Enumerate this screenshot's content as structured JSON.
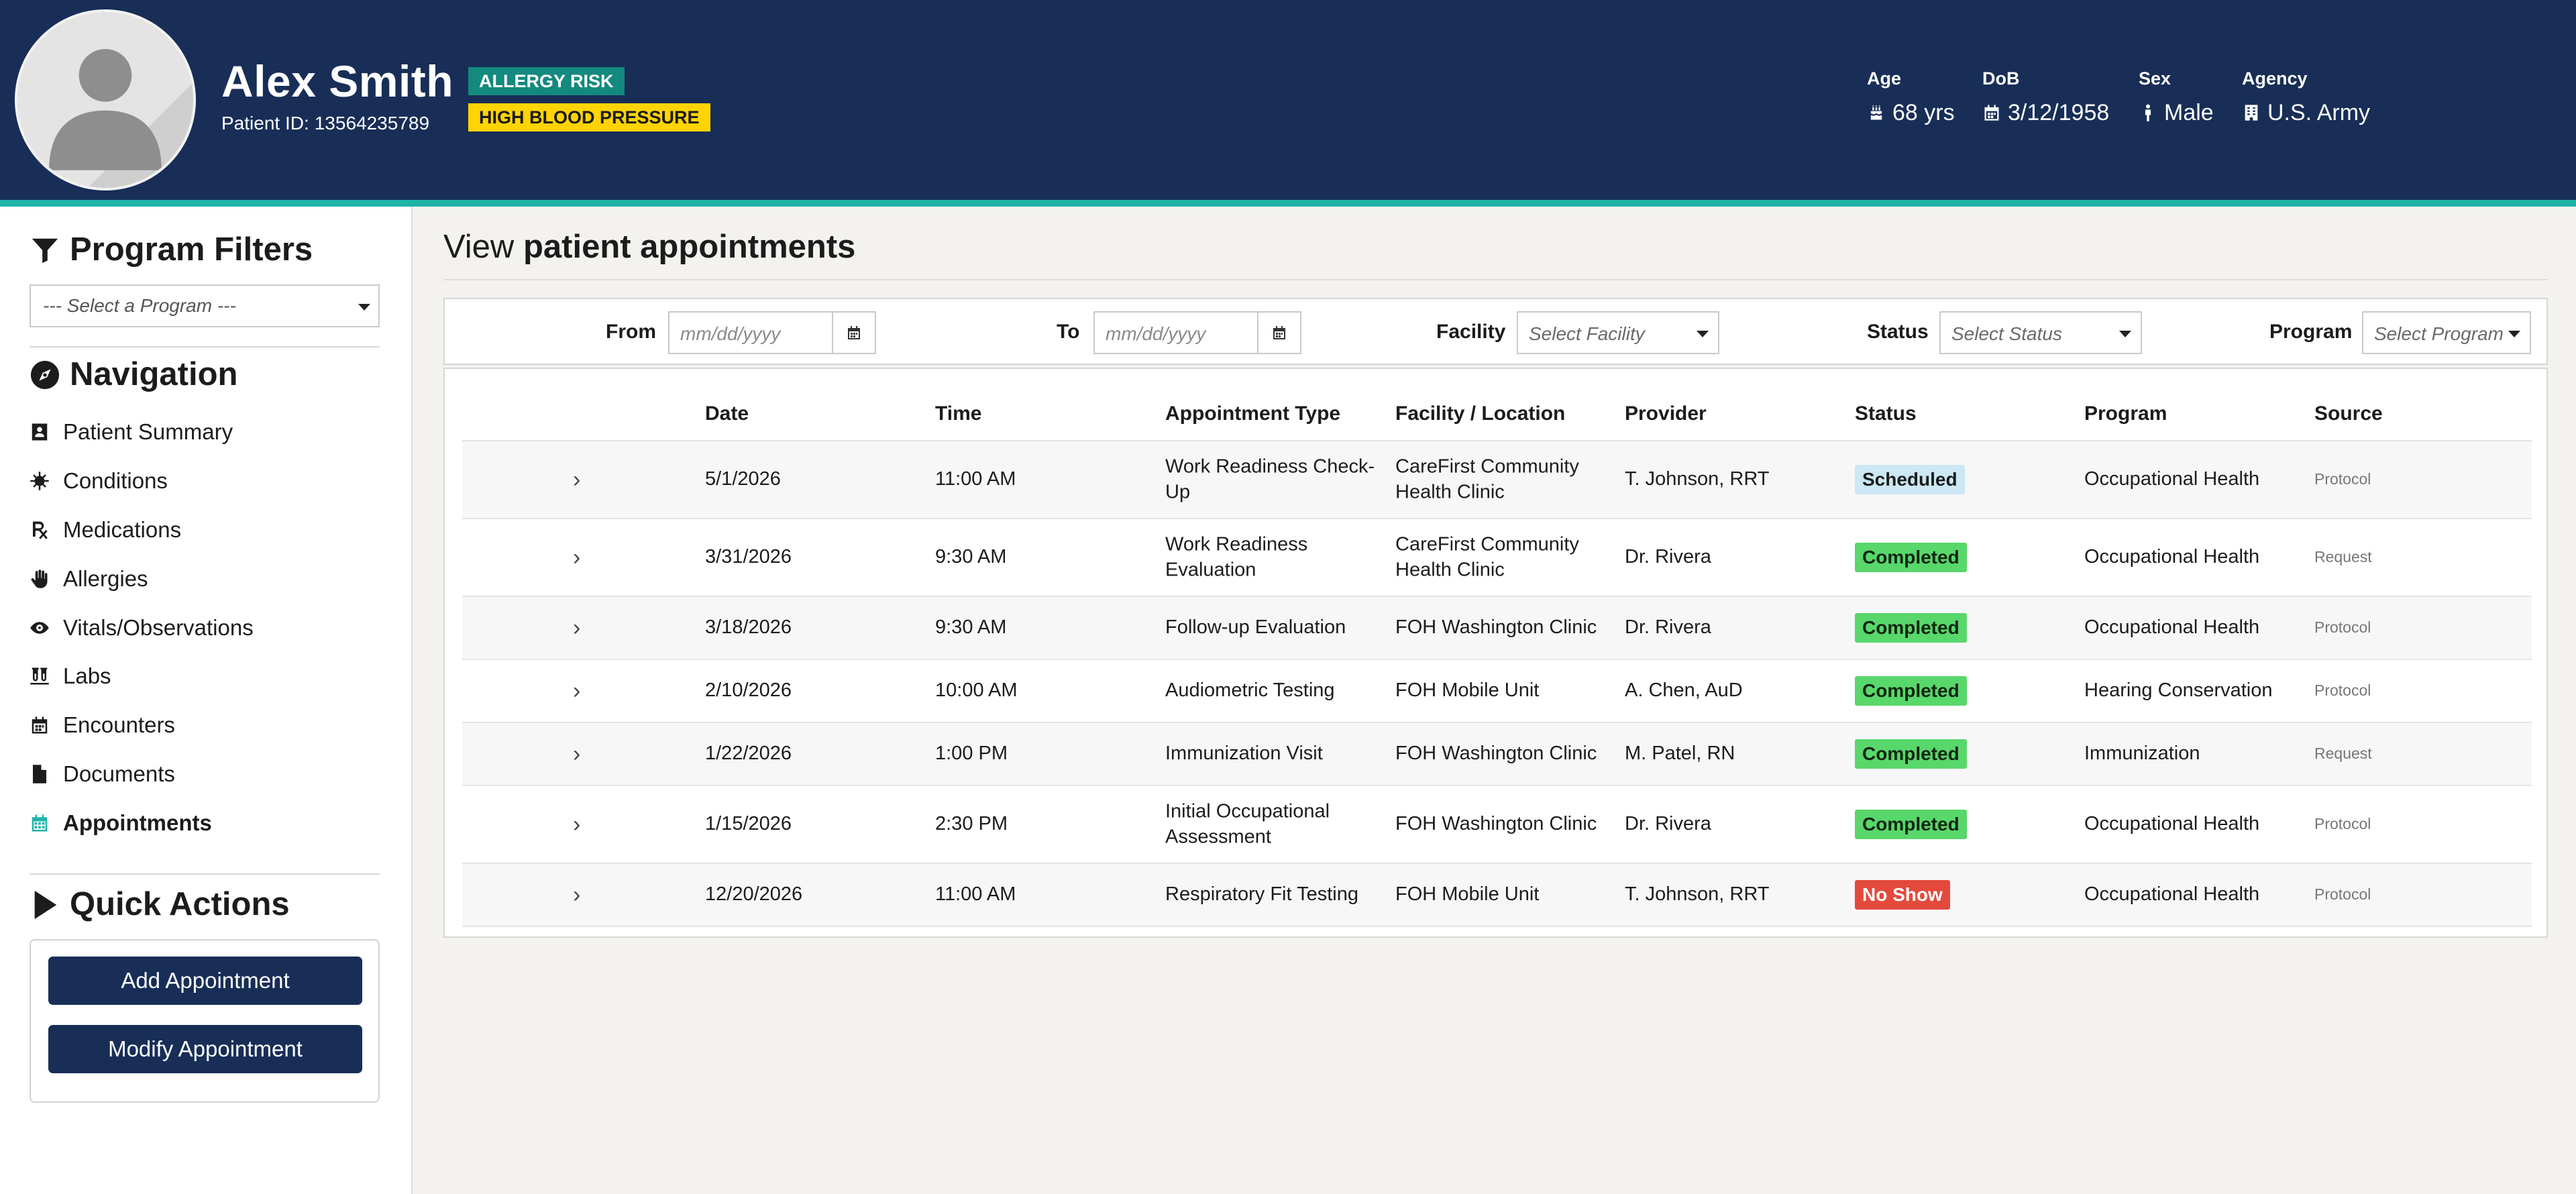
{
  "patient": {
    "name": "Alex Smith",
    "id_label": "Patient ID:",
    "id": "13564235789",
    "alerts": [
      "ALLERGY RISK",
      "HIGH BLOOD PRESSURE"
    ],
    "demographics": {
      "age": {
        "label": "Age",
        "value": "68 yrs"
      },
      "dob": {
        "label": "DoB",
        "value": "3/12/1958"
      },
      "sex": {
        "label": "Sex",
        "value": "Male"
      },
      "agency": {
        "label": "Agency",
        "value": "U.S. Army"
      }
    }
  },
  "sidebar": {
    "filters_title": "Program Filters",
    "program_select": "--- Select a Program ---",
    "nav_title": "Navigation",
    "nav_items": [
      {
        "label": "Patient Summary",
        "icon": "id-card-icon"
      },
      {
        "label": "Conditions",
        "icon": "virus-icon"
      },
      {
        "label": "Medications",
        "icon": "prescription-icon"
      },
      {
        "label": "Allergies",
        "icon": "hand-icon"
      },
      {
        "label": "Vitals/Observations",
        "icon": "eye-icon"
      },
      {
        "label": "Labs",
        "icon": "vials-icon"
      },
      {
        "label": "Encounters",
        "icon": "calendar-icon"
      },
      {
        "label": "Documents",
        "icon": "file-icon"
      },
      {
        "label": "Appointments",
        "icon": "calendar-grid-icon",
        "active": true
      }
    ],
    "quick_title": "Quick Actions",
    "quick_actions": {
      "add": "Add Appointment",
      "modify": "Modify Appointment"
    }
  },
  "main": {
    "title_prefix": "View",
    "title_emphasis": "patient appointments",
    "filters": {
      "from_label": "From",
      "from_placeholder": "mm/dd/yyyy",
      "to_label": "To",
      "to_placeholder": "mm/dd/yyyy",
      "facility_label": "Facility",
      "facility_placeholder": "Select Facility",
      "status_label": "Status",
      "status_placeholder": "Select Status",
      "program_label": "Program",
      "program_placeholder": "Select Program"
    },
    "table": {
      "columns": [
        "Date",
        "Time",
        "Appointment Type",
        "Facility / Location",
        "Provider",
        "Status",
        "Program",
        "Source"
      ],
      "rows": [
        {
          "date": "5/1/2026",
          "time": "11:00 AM",
          "type": "Work Readiness Check-\nUp",
          "facility": "CareFirst Community\nHealth Clinic",
          "provider": "T. Johnson, RRT",
          "status": "Scheduled",
          "program": "Occupational Health",
          "source": "Protocol"
        },
        {
          "date": "3/31/2026",
          "time": "9:30 AM",
          "type": "Work Readiness\nEvaluation",
          "facility": "CareFirst Community\nHealth Clinic",
          "provider": "Dr. Rivera",
          "status": "Completed",
          "program": "Occupational Health",
          "source": "Request"
        },
        {
          "date": "3/18/2026",
          "time": "9:30 AM",
          "type": "Follow-up Evaluation",
          "facility": "FOH Washington Clinic",
          "provider": "Dr. Rivera",
          "status": "Completed",
          "program": "Occupational Health",
          "source": "Protocol"
        },
        {
          "date": "2/10/2026",
          "time": "10:00 AM",
          "type": "Audiometric Testing",
          "facility": "FOH Mobile Unit",
          "provider": "A. Chen, AuD",
          "status": "Completed",
          "program": "Hearing Conservation",
          "source": "Protocol"
        },
        {
          "date": "1/22/2026",
          "time": "1:00 PM",
          "type": "Immunization Visit",
          "facility": "FOH Washington Clinic",
          "provider": "M. Patel, RN",
          "status": "Completed",
          "program": "Immunization",
          "source": "Request"
        },
        {
          "date": "1/15/2026",
          "time": "2:30 PM",
          "type": "Initial Occupational\nAssessment",
          "facility": "FOH Washington Clinic",
          "provider": "Dr. Rivera",
          "status": "Completed",
          "program": "Occupational Health",
          "source": "Protocol"
        },
        {
          "date": "12/20/2026",
          "time": "11:00 AM",
          "type": "Respiratory Fit Testing",
          "facility": "FOH Mobile Unit",
          "provider": "T. Johnson, RRT",
          "status": "No Show",
          "program": "Occupational Health",
          "source": "Protocol"
        }
      ]
    }
  },
  "colors": {
    "header_bg": "#182e57",
    "accent_teal": "#1fb4a8",
    "allergy_badge": "#14897d",
    "bp_badge": "#ffd400",
    "status_scheduled": "#cbe8f4",
    "status_completed": "#58d76b",
    "status_noshow": "#e34a3c"
  }
}
